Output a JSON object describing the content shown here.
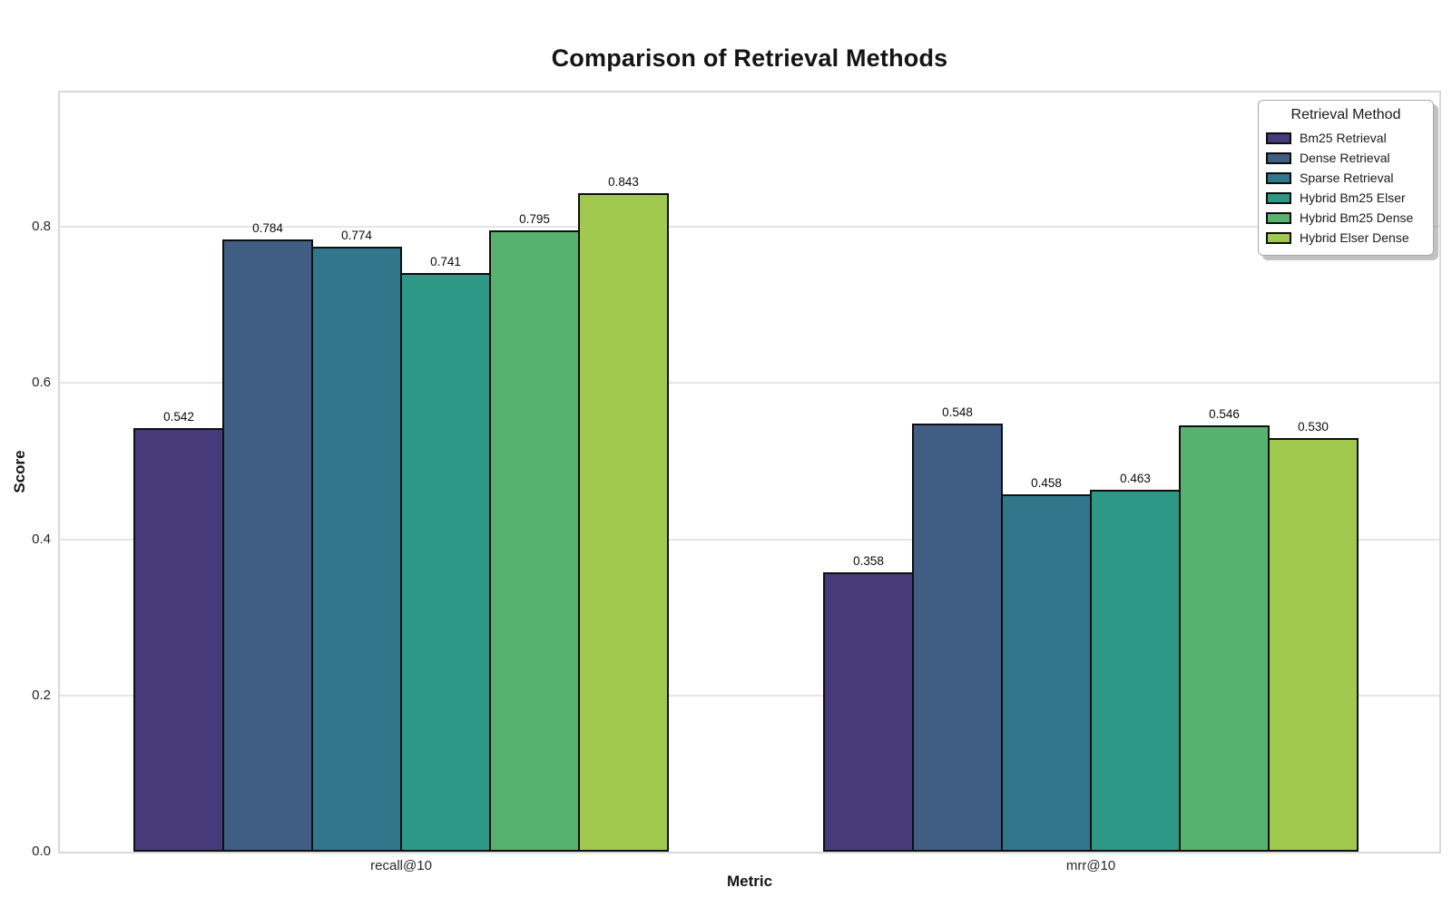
{
  "title": "Comparison of Retrieval Methods",
  "chart_data": {
    "type": "bar",
    "title": "Comparison of Retrieval Methods",
    "xlabel": "Metric",
    "ylabel": "Score",
    "categories": [
      "recall@10",
      "mrr@10"
    ],
    "series": [
      {
        "name": "Bm25 Retrieval",
        "color": "#473a7a",
        "values": [
          0.542,
          0.358
        ]
      },
      {
        "name": "Dense Retrieval",
        "color": "#405d83",
        "values": [
          0.784,
          0.548
        ]
      },
      {
        "name": "Sparse Retrieval",
        "color": "#32768c",
        "values": [
          0.774,
          0.458
        ]
      },
      {
        "name": "Hybrid Bm25 Elser",
        "color": "#2e9886",
        "values": [
          0.741,
          0.463
        ]
      },
      {
        "name": "Hybrid Bm25 Dense",
        "color": "#56b26e",
        "values": [
          0.795,
          0.546
        ]
      },
      {
        "name": "Hybrid Elser Dense",
        "color": "#a0c84c",
        "values": [
          0.843,
          0.53
        ]
      }
    ],
    "y_ticks": [
      0.0,
      0.2,
      0.4,
      0.6,
      0.8
    ],
    "ylim": [
      0,
      0.972
    ],
    "value_labels_decimals": 3,
    "grid": true,
    "legend_title": "Retrieval Method",
    "legend_position": "upper right",
    "colors": {
      "bar_edge": "#0f0f0f",
      "gridline": "#e5e5e5",
      "spine": "#d8d8d8",
      "text": "#141414"
    }
  }
}
